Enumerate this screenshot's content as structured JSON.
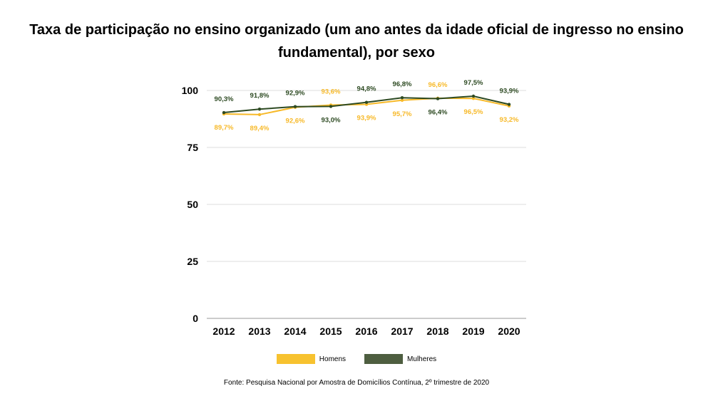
{
  "title_line1": "Taxa de participação no ensino organizado (um ano antes da idade oficial de ingresso no ensino",
  "title_line2": "fundamental), por sexo",
  "source": "Fonte: Pesquisa Nacional por Amostra de Domicílios Contínua, 2º trimestre de 2020",
  "chart_data": {
    "type": "line",
    "x": [
      "2012",
      "2013",
      "2014",
      "2015",
      "2016",
      "2017",
      "2018",
      "2019",
      "2020"
    ],
    "ylim": [
      0,
      100
    ],
    "yticks": [
      0,
      25,
      50,
      75,
      100
    ],
    "grid": true,
    "legend_position": "bottom",
    "series": [
      {
        "name": "Homens",
        "color": "#f7b928",
        "values": [
          89.7,
          89.4,
          92.6,
          93.6,
          93.9,
          95.7,
          96.6,
          96.5,
          93.2
        ],
        "labels": [
          "89,7%",
          "89,4%",
          "92,6%",
          "93,6%",
          "93,9%",
          "95,7%",
          "96,6%",
          "96,5%",
          "93,2%"
        ],
        "label_side": [
          "below",
          "below",
          "below",
          "above",
          "below",
          "below",
          "above",
          "below",
          "below"
        ]
      },
      {
        "name": "Mulheres",
        "color": "#2d4a22",
        "values": [
          90.3,
          91.8,
          92.9,
          93.0,
          94.8,
          96.8,
          96.4,
          97.5,
          93.9
        ],
        "labels": [
          "90,3%",
          "91,8%",
          "92,9%",
          "93,0%",
          "94,8%",
          "96,8%",
          "96,4%",
          "97,5%",
          "93,9%"
        ],
        "label_side": [
          "above",
          "above",
          "above",
          "below",
          "above",
          "above",
          "below",
          "above",
          "above"
        ]
      }
    ]
  }
}
